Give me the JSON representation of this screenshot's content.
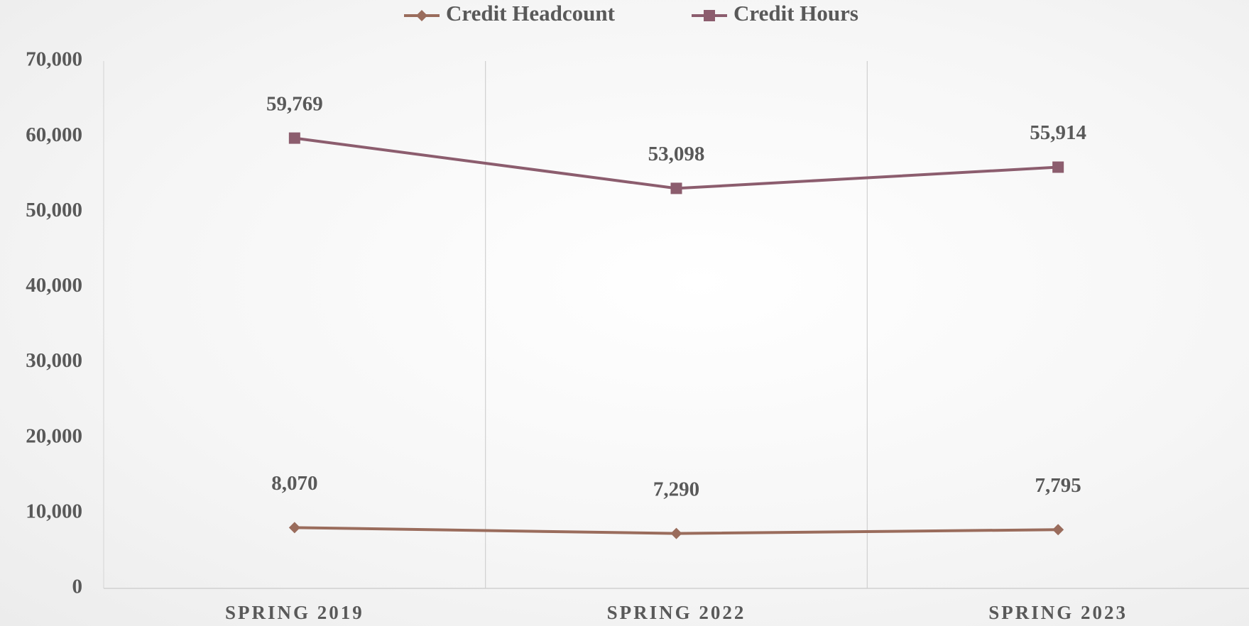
{
  "chart_data": {
    "type": "line",
    "categories": [
      "SPRING 2019",
      "SPRING 2022",
      "SPRING 2023"
    ],
    "series": [
      {
        "name": "Credit Headcount",
        "color": "#9a6c5c",
        "marker": "diamond",
        "values": [
          8070,
          7290,
          7795
        ],
        "value_labels": [
          "8,070",
          "7,290",
          "7,795"
        ]
      },
      {
        "name": "Credit Hours",
        "color": "#8c5d6e",
        "marker": "square",
        "values": [
          59769,
          53098,
          55914
        ],
        "value_labels": [
          "59,769",
          "53,098",
          "55,914"
        ]
      }
    ],
    "ylim": [
      0,
      70000
    ],
    "yticks": [
      0,
      {
        "value": 10000,
        "label": "10,000"
      },
      {
        "value": 20000,
        "label": "20,000"
      },
      {
        "value": 30000,
        "label": "30,000"
      },
      {
        "value": 40000,
        "label": "40,000"
      },
      {
        "value": 50000,
        "label": "50,000"
      },
      {
        "value": 60000,
        "label": "60,000"
      },
      {
        "value": 70000,
        "label": "70,000"
      }
    ],
    "grid": true,
    "legend": "top"
  }
}
